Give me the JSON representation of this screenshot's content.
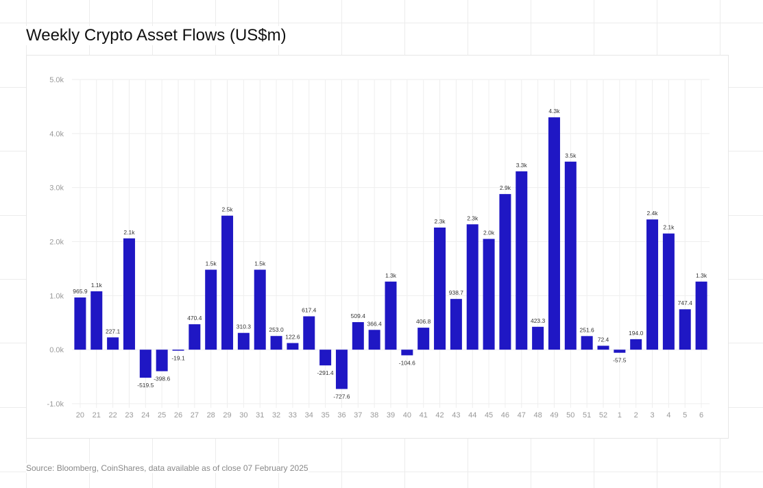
{
  "title": "Weekly Crypto Asset Flows (US$m)",
  "source": "Source: Bloomberg, CoinShares, data available as of close 07 February 2025",
  "colors": {
    "bar": "#1f17c4",
    "grid": "#eeeeee",
    "tick_text": "#999999",
    "label_text": "#333333"
  },
  "chart_data": {
    "type": "bar",
    "title": "Weekly Crypto Asset Flows (US$m)",
    "xlabel": "",
    "ylabel": "",
    "ylim": [
      -1000,
      5000
    ],
    "yticks": [
      -1000,
      0,
      1000,
      2000,
      3000,
      4000,
      5000
    ],
    "ytick_labels": [
      "-1.0k",
      "0.0k",
      "1.0k",
      "2.0k",
      "3.0k",
      "4.0k",
      "5.0k"
    ],
    "grid": true,
    "categories": [
      "20",
      "21",
      "22",
      "23",
      "24",
      "25",
      "26",
      "27",
      "28",
      "29",
      "30",
      "31",
      "32",
      "33",
      "34",
      "35",
      "36",
      "37",
      "38",
      "39",
      "40",
      "41",
      "42",
      "43",
      "44",
      "45",
      "46",
      "47",
      "48",
      "49",
      "50",
      "51",
      "52",
      "1",
      "2",
      "3",
      "4",
      "5",
      "6"
    ],
    "values": [
      965.9,
      1080,
      227.1,
      2060,
      -519.5,
      -398.6,
      -19.1,
      470.4,
      1480,
      2480,
      310.3,
      1480,
      253.0,
      122.6,
      617.4,
      -291.4,
      -727.6,
      509.4,
      366.4,
      1260,
      -104.6,
      406.8,
      2260,
      938.7,
      2320,
      2050,
      2880,
      3300,
      423.3,
      4300,
      3480,
      251.6,
      72.4,
      -57.5,
      194.0,
      2410,
      2150,
      747.4,
      1260
    ],
    "data_labels": [
      "965.9",
      "1.1k",
      "227.1",
      "2.1k",
      "-519.5",
      "-398.6",
      "-19.1",
      "470.4",
      "1.5k",
      "2.5k",
      "310.3",
      "1.5k",
      "253.0",
      "122.6",
      "617.4",
      "-291.4",
      "-727.6",
      "509.4",
      "366.4",
      "1.3k",
      "-104.6",
      "406.8",
      "2.3k",
      "938.7",
      "2.3k",
      "2.0k",
      "2.9k",
      "3.3k",
      "423.3",
      "4.3k",
      "3.5k",
      "251.6",
      "72.4",
      "-57.5",
      "194.0",
      "2.4k",
      "2.1k",
      "747.4",
      "1.3k"
    ]
  }
}
